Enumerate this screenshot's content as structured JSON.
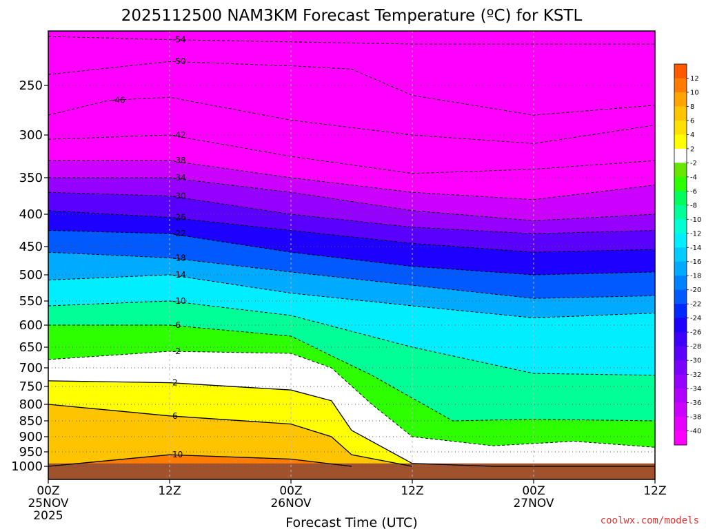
{
  "chart_data": {
    "type": "heatmap",
    "title": "2025112500 NAM3KM Forecast Temperature (ºC) for KSTL",
    "xlabel": "Forecast Time (UTC)",
    "ylabel": "",
    "x_ticks": [
      {
        "hours": 0,
        "lines": [
          "00Z",
          "25NOV",
          "2025"
        ]
      },
      {
        "hours": 12,
        "lines": [
          "12Z"
        ]
      },
      {
        "hours": 24,
        "lines": [
          "00Z",
          "26NOV"
        ]
      },
      {
        "hours": 36,
        "lines": [
          "12Z"
        ]
      },
      {
        "hours": 48,
        "lines": [
          "00Z",
          "27NOV"
        ]
      },
      {
        "hours": 60,
        "lines": [
          "12Z"
        ]
      }
    ],
    "xlim": [
      0,
      60
    ],
    "y_ticks": [
      250,
      300,
      350,
      400,
      450,
      500,
      550,
      600,
      650,
      700,
      750,
      800,
      850,
      900,
      950,
      1000
    ],
    "ylim": [
      1030,
      200
    ],
    "ground_pressure": 990,
    "levels": [
      -40,
      -38,
      -36,
      -34,
      -32,
      -30,
      -28,
      -26,
      -24,
      -22,
      -20,
      -18,
      -16,
      -14,
      -12,
      -10,
      -8,
      -6,
      -4,
      -2,
      2,
      4,
      6,
      8,
      10,
      12
    ],
    "colorbar_colors": [
      "#ff00ff",
      "#e500ff",
      "#cc00ff",
      "#b200ff",
      "#9500ff",
      "#7a00ff",
      "#5a00ff",
      "#3c00ff",
      "#1e00ff",
      "#0028ff",
      "#005aff",
      "#0082ff",
      "#00aaff",
      "#00ccff",
      "#00eeff",
      "#00ffd2",
      "#00ff96",
      "#00ff5a",
      "#2eff00",
      "#68e600",
      "#ffffff",
      "#ffff00",
      "#ffe000",
      "#ffc400",
      "#ffa400",
      "#ff7c00",
      "#ff5a00"
    ],
    "isotherms": [
      {
        "value": -54,
        "label": "-54",
        "points": [
          [
            0,
            205
          ],
          [
            12,
            208
          ],
          [
            24,
            210
          ],
          [
            36,
            212
          ],
          [
            48,
            212
          ],
          [
            60,
            212
          ]
        ]
      },
      {
        "value": -50,
        "label": "-50",
        "points": [
          [
            0,
            240
          ],
          [
            12,
            228
          ],
          [
            24,
            232
          ],
          [
            30,
            235
          ],
          [
            36,
            260
          ],
          [
            48,
            280
          ],
          [
            60,
            270
          ]
        ]
      },
      {
        "value": -46,
        "label": "-46",
        "points": [
          [
            0,
            280
          ],
          [
            6,
            265
          ],
          [
            12,
            262
          ],
          [
            24,
            285
          ],
          [
            36,
            300
          ],
          [
            48,
            310
          ],
          [
            60,
            290
          ]
        ]
      },
      {
        "value": -42,
        "label": "-42",
        "points": [
          [
            0,
            305
          ],
          [
            12,
            300
          ],
          [
            24,
            325
          ],
          [
            36,
            345
          ],
          [
            48,
            340
          ],
          [
            60,
            330
          ]
        ]
      },
      {
        "value": -38,
        "label": "-38",
        "points": [
          [
            0,
            330
          ],
          [
            12,
            330
          ],
          [
            24,
            350
          ],
          [
            36,
            370
          ],
          [
            48,
            380
          ],
          [
            60,
            360
          ]
        ]
      },
      {
        "value": -34,
        "label": "-34",
        "points": [
          [
            0,
            350
          ],
          [
            12,
            350
          ],
          [
            24,
            370
          ],
          [
            36,
            395
          ],
          [
            48,
            410
          ],
          [
            60,
            400
          ]
        ]
      },
      {
        "value": -30,
        "label": "-30",
        "points": [
          [
            0,
            370
          ],
          [
            12,
            375
          ],
          [
            24,
            400
          ],
          [
            36,
            420
          ],
          [
            48,
            430
          ],
          [
            60,
            425
          ]
        ]
      },
      {
        "value": -26,
        "label": "-26",
        "points": [
          [
            0,
            395
          ],
          [
            12,
            405
          ],
          [
            24,
            425
          ],
          [
            36,
            445
          ],
          [
            48,
            460
          ],
          [
            60,
            455
          ]
        ]
      },
      {
        "value": -22,
        "label": "-22",
        "points": [
          [
            0,
            425
          ],
          [
            12,
            430
          ],
          [
            24,
            460
          ],
          [
            36,
            485
          ],
          [
            48,
            500
          ],
          [
            60,
            495
          ]
        ]
      },
      {
        "value": -18,
        "label": "-18",
        "points": [
          [
            0,
            460
          ],
          [
            12,
            470
          ],
          [
            24,
            495
          ],
          [
            36,
            520
          ],
          [
            48,
            545
          ],
          [
            60,
            540
          ]
        ]
      },
      {
        "value": -14,
        "label": "-14",
        "points": [
          [
            0,
            510
          ],
          [
            12,
            500
          ],
          [
            24,
            535
          ],
          [
            36,
            560
          ],
          [
            48,
            585
          ],
          [
            60,
            575
          ]
        ]
      },
      {
        "value": -10,
        "label": "-10",
        "points": [
          [
            0,
            560
          ],
          [
            12,
            550
          ],
          [
            24,
            580
          ],
          [
            36,
            650
          ],
          [
            48,
            715
          ],
          [
            60,
            720
          ]
        ]
      },
      {
        "value": -6,
        "label": "-6",
        "points": [
          [
            0,
            600
          ],
          [
            12,
            600
          ],
          [
            24,
            625
          ],
          [
            32,
            720
          ],
          [
            40,
            850
          ],
          [
            48,
            845
          ],
          [
            60,
            850
          ]
        ]
      },
      {
        "value": -2,
        "label": "-2",
        "points": [
          [
            0,
            680
          ],
          [
            12,
            660
          ],
          [
            24,
            665
          ],
          [
            28,
            700
          ],
          [
            32,
            800
          ],
          [
            36,
            900
          ],
          [
            44,
            930
          ],
          [
            52,
            915
          ],
          [
            60,
            935
          ]
        ]
      },
      {
        "value": 2,
        "label": "2",
        "points": [
          [
            0,
            735
          ],
          [
            12,
            740
          ],
          [
            24,
            760
          ],
          [
            28,
            790
          ],
          [
            30,
            880
          ],
          [
            36,
            990
          ],
          [
            44,
            1000
          ],
          [
            52,
            1000
          ],
          [
            60,
            1000
          ]
        ]
      },
      {
        "value": 6,
        "label": "6",
        "points": [
          [
            0,
            800
          ],
          [
            12,
            835
          ],
          [
            24,
            860
          ],
          [
            28,
            900
          ],
          [
            30,
            960
          ],
          [
            36,
            1000
          ]
        ]
      },
      {
        "value": 10,
        "label": "10",
        "points": [
          [
            0,
            1000
          ],
          [
            12,
            960
          ],
          [
            24,
            975
          ],
          [
            30,
            1000
          ]
        ]
      }
    ]
  },
  "credit": "coolwx.com/models"
}
